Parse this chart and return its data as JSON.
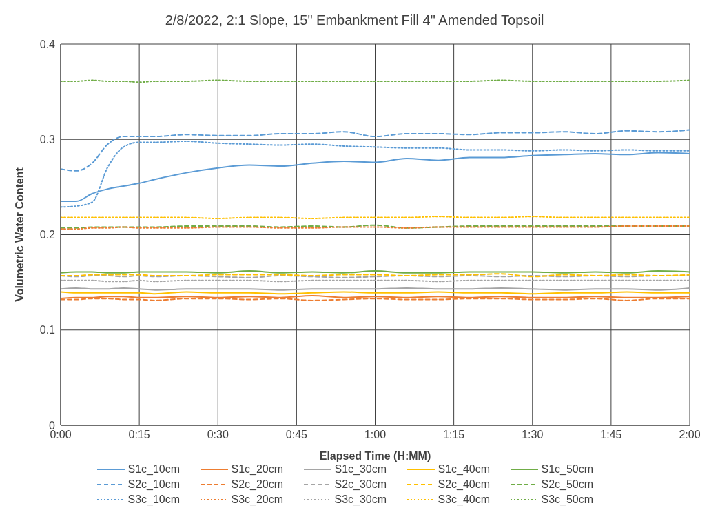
{
  "chart_data": {
    "type": "line",
    "title": "2/8/2022, 2:1 Slope, 15\" Embankment Fill 4\" Amended Topsoil",
    "xlabel": "Elapsed Time (H:MM)",
    "ylabel": "Volumetric Water Content",
    "x": [
      0,
      0.05,
      0.1,
      0.15,
      0.2,
      0.25,
      0.3,
      0.4,
      0.5,
      0.6,
      0.7,
      0.8,
      0.9,
      1.0,
      1.1,
      1.2,
      1.3,
      1.4,
      1.5,
      1.6,
      1.7,
      1.8,
      1.9,
      2.0
    ],
    "xlim": [
      0,
      2
    ],
    "xticks": [
      {
        "value": 0,
        "label": "0:00"
      },
      {
        "value": 0.25,
        "label": "0:15"
      },
      {
        "value": 0.5,
        "label": "0:30"
      },
      {
        "value": 0.75,
        "label": "0:45"
      },
      {
        "value": 1,
        "label": "1:00"
      },
      {
        "value": 1.25,
        "label": "1:15"
      },
      {
        "value": 1.5,
        "label": "1:30"
      },
      {
        "value": 1.75,
        "label": "1:45"
      },
      {
        "value": 2,
        "label": "2:00"
      }
    ],
    "ylim": [
      0,
      0.4
    ],
    "yticks": [
      0,
      0.1,
      0.2,
      0.3,
      0.4
    ],
    "grid": true,
    "legend": "bottom",
    "marker": "none",
    "series": [
      {
        "name": "S1c_10cm",
        "color": "#5b9bd5",
        "line_style": "solid",
        "values": [
          0.235,
          0.235,
          0.243,
          0.248,
          0.251,
          0.254,
          0.258,
          0.265,
          0.27,
          0.273,
          0.272,
          0.275,
          0.277,
          0.276,
          0.28,
          0.278,
          0.281,
          0.281,
          0.283,
          0.284,
          0.285,
          0.284,
          0.286,
          0.285
        ]
      },
      {
        "name": "S1c_20cm",
        "color": "#ed7d31",
        "line_style": "solid",
        "values": [
          0.133,
          0.134,
          0.134,
          0.135,
          0.135,
          0.134,
          0.134,
          0.135,
          0.134,
          0.135,
          0.134,
          0.136,
          0.134,
          0.135,
          0.134,
          0.135,
          0.134,
          0.135,
          0.134,
          0.134,
          0.135,
          0.134,
          0.134,
          0.135
        ]
      },
      {
        "name": "S1c_30cm",
        "color": "#a5a5a5",
        "line_style": "solid",
        "values": [
          0.143,
          0.144,
          0.143,
          0.143,
          0.144,
          0.143,
          0.142,
          0.143,
          0.143,
          0.143,
          0.142,
          0.143,
          0.143,
          0.143,
          0.144,
          0.143,
          0.143,
          0.144,
          0.143,
          0.142,
          0.143,
          0.143,
          0.142,
          0.144
        ]
      },
      {
        "name": "S1c_40cm",
        "color": "#ffc000",
        "line_style": "solid",
        "values": [
          0.14,
          0.139,
          0.139,
          0.139,
          0.139,
          0.139,
          0.138,
          0.14,
          0.139,
          0.139,
          0.138,
          0.139,
          0.14,
          0.139,
          0.139,
          0.14,
          0.139,
          0.139,
          0.138,
          0.139,
          0.139,
          0.14,
          0.139,
          0.139
        ]
      },
      {
        "name": "S1c_50cm",
        "color": "#70ad47",
        "line_style": "solid",
        "values": [
          0.16,
          0.161,
          0.161,
          0.16,
          0.16,
          0.161,
          0.161,
          0.161,
          0.16,
          0.162,
          0.16,
          0.161,
          0.16,
          0.162,
          0.16,
          0.16,
          0.161,
          0.161,
          0.161,
          0.16,
          0.161,
          0.16,
          0.162,
          0.161
        ]
      },
      {
        "name": "S2c_10cm",
        "color": "#5b9bd5",
        "line_style": "dashed",
        "values": [
          0.269,
          0.267,
          0.275,
          0.295,
          0.303,
          0.303,
          0.303,
          0.305,
          0.304,
          0.304,
          0.306,
          0.306,
          0.308,
          0.303,
          0.306,
          0.306,
          0.305,
          0.307,
          0.307,
          0.308,
          0.306,
          0.309,
          0.308,
          0.31
        ]
      },
      {
        "name": "S2c_20cm",
        "color": "#ed7d31",
        "line_style": "dashed",
        "values": [
          0.132,
          0.132,
          0.133,
          0.133,
          0.132,
          0.132,
          0.131,
          0.133,
          0.133,
          0.132,
          0.133,
          0.131,
          0.132,
          0.133,
          0.132,
          0.132,
          0.133,
          0.133,
          0.132,
          0.132,
          0.133,
          0.131,
          0.133,
          0.133
        ]
      },
      {
        "name": "S2c_30cm",
        "color": "#a5a5a5",
        "line_style": "dashed",
        "values": [
          0.157,
          0.156,
          0.157,
          0.157,
          0.156,
          0.157,
          0.156,
          0.157,
          0.156,
          0.155,
          0.157,
          0.156,
          0.155,
          0.156,
          0.157,
          0.156,
          0.157,
          0.156,
          0.157,
          0.156,
          0.157,
          0.156,
          0.157,
          0.157
        ]
      },
      {
        "name": "S2c_40cm",
        "color": "#ffc000",
        "line_style": "dashed",
        "values": [
          0.157,
          0.157,
          0.158,
          0.158,
          0.158,
          0.158,
          0.157,
          0.157,
          0.158,
          0.158,
          0.158,
          0.157,
          0.158,
          0.158,
          0.157,
          0.158,
          0.158,
          0.159,
          0.156,
          0.158,
          0.157,
          0.158,
          0.157,
          0.158
        ]
      },
      {
        "name": "S2c_50cm",
        "color": "#70ad47",
        "line_style": "dashed",
        "values": [
          0.207,
          0.207,
          0.208,
          0.208,
          0.208,
          0.208,
          0.208,
          0.209,
          0.209,
          0.209,
          0.208,
          0.209,
          0.208,
          0.21,
          0.207,
          0.208,
          0.209,
          0.209,
          0.209,
          0.209,
          0.209,
          0.209,
          0.209,
          0.209
        ]
      },
      {
        "name": "S3c_10cm",
        "color": "#5b9bd5",
        "line_style": "dotted",
        "values": [
          0.229,
          0.23,
          0.234,
          0.271,
          0.292,
          0.297,
          0.297,
          0.298,
          0.296,
          0.295,
          0.294,
          0.295,
          0.293,
          0.292,
          0.291,
          0.291,
          0.289,
          0.289,
          0.288,
          0.289,
          0.288,
          0.289,
          0.288,
          0.288
        ]
      },
      {
        "name": "S3c_20cm",
        "color": "#ed7d31",
        "line_style": "dotted",
        "values": [
          0.206,
          0.206,
          0.207,
          0.207,
          0.208,
          0.207,
          0.207,
          0.207,
          0.208,
          0.208,
          0.207,
          0.207,
          0.208,
          0.208,
          0.207,
          0.208,
          0.208,
          0.208,
          0.208,
          0.208,
          0.208,
          0.209,
          0.209,
          0.209
        ]
      },
      {
        "name": "S3c_30cm",
        "color": "#a5a5a5",
        "line_style": "dotted",
        "values": [
          0.152,
          0.152,
          0.152,
          0.151,
          0.151,
          0.152,
          0.151,
          0.152,
          0.152,
          0.152,
          0.151,
          0.152,
          0.152,
          0.152,
          0.152,
          0.151,
          0.152,
          0.152,
          0.152,
          0.152,
          0.152,
          0.152,
          0.152,
          0.152
        ]
      },
      {
        "name": "S3c_40cm",
        "color": "#ffc000",
        "line_style": "dotted",
        "values": [
          0.218,
          0.218,
          0.218,
          0.218,
          0.218,
          0.218,
          0.218,
          0.218,
          0.217,
          0.218,
          0.218,
          0.217,
          0.218,
          0.218,
          0.218,
          0.219,
          0.218,
          0.218,
          0.219,
          0.218,
          0.218,
          0.218,
          0.218,
          0.218
        ]
      },
      {
        "name": "S3c_50cm",
        "color": "#70ad47",
        "line_style": "dotted",
        "values": [
          0.361,
          0.361,
          0.362,
          0.361,
          0.361,
          0.36,
          0.361,
          0.361,
          0.362,
          0.361,
          0.361,
          0.361,
          0.361,
          0.361,
          0.361,
          0.361,
          0.361,
          0.362,
          0.361,
          0.361,
          0.361,
          0.361,
          0.361,
          0.362
        ]
      }
    ]
  }
}
